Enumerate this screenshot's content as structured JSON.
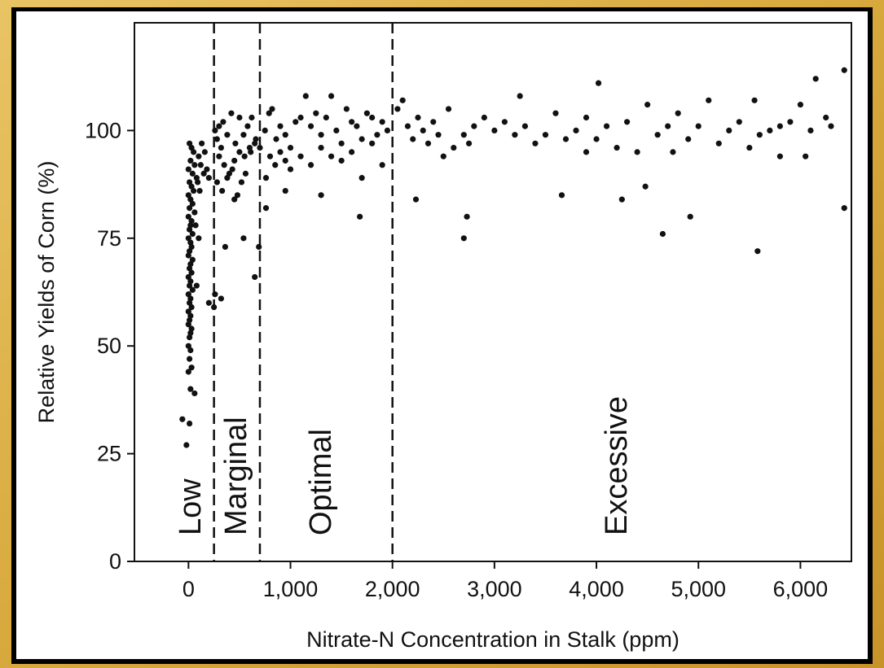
{
  "chart_data": {
    "type": "scatter",
    "x_label": "Nitrate-N Concentration in Stalk (ppm)",
    "y_label": "Relative Yields of Corn (%)",
    "xlim": [
      -530,
      6500
    ],
    "ylim": [
      0,
      125
    ],
    "xticks": [
      0,
      {
        "value": 1000,
        "label": "1,000"
      },
      {
        "value": 2000,
        "label": "2,000"
      },
      {
        "value": 3000,
        "label": "3,000"
      },
      {
        "value": 4000,
        "label": "4,000"
      },
      {
        "value": 5000,
        "label": "5,000"
      },
      {
        "value": 6000,
        "label": "6,000"
      }
    ],
    "yticks": [
      0,
      25,
      50,
      75,
      100
    ],
    "thresholds": [
      250,
      700,
      2000
    ],
    "annotations": [
      "Low",
      "Marginal",
      "Optimal",
      "Excessive"
    ],
    "color": "#111111",
    "series": [
      {
        "x": [
          10,
          30,
          50,
          20,
          60,
          0,
          40,
          80,
          10,
          30,
          50,
          0,
          20,
          40,
          10,
          60,
          0,
          30,
          20,
          10,
          40,
          0,
          20,
          30,
          10,
          0,
          40,
          20,
          10,
          30,
          0,
          20,
          10,
          40,
          0,
          20,
          10,
          30,
          0,
          20,
          10,
          0,
          30,
          20,
          10,
          0,
          20,
          10,
          30,
          0,
          20,
          60,
          -60,
          10,
          -20,
          100,
          120,
          150,
          90,
          110,
          130,
          160,
          180,
          200,
          70,
          100,
          80,
          200,
          260,
          300,
          340,
          280,
          320,
          380,
          420,
          460,
          500,
          540,
          580,
          620,
          660,
          300,
          350,
          400,
          450,
          500,
          550,
          600,
          650,
          700,
          280,
          330,
          380,
          430,
          480,
          520,
          560,
          610,
          450,
          360,
          540,
          690,
          650,
          260,
          250,
          320,
          750,
          790,
          820,
          860,
          900,
          950,
          1000,
          1050,
          1100,
          1150,
          1200,
          1250,
          1300,
          1350,
          1400,
          1450,
          1500,
          1550,
          1600,
          1650,
          1700,
          1750,
          1800,
          1850,
          1900,
          1950,
          760,
          800,
          850,
          900,
          950,
          1000,
          1100,
          1200,
          1300,
          1400,
          1500,
          1600,
          1700,
          1800,
          1900,
          760,
          950,
          1300,
          1680,
          2050,
          2100,
          2150,
          2200,
          2250,
          2300,
          2350,
          2400,
          2450,
          2500,
          2550,
          2600,
          2700,
          2750,
          2800,
          2900,
          3000,
          3100,
          3200,
          3250,
          3300,
          3400,
          3500,
          3600,
          3700,
          3800,
          3900,
          4000,
          4100,
          4200,
          4300,
          4400,
          4500,
          4600,
          4700,
          4800,
          4900,
          5000,
          5100,
          5200,
          5300,
          5400,
          5500,
          5550,
          5600,
          5700,
          5800,
          5900,
          6000,
          6050,
          6100,
          6150,
          6250,
          6300,
          6430,
          2230,
          2700,
          2730,
          3660,
          4020,
          4250,
          4480,
          4650,
          4920,
          5580,
          6430,
          5800,
          4750,
          3900
        ],
        "values": [
          97,
          96,
          95,
          93,
          92,
          91,
          90,
          89,
          88,
          87,
          86,
          85,
          84,
          83,
          82,
          81,
          80,
          79,
          78,
          77,
          76,
          75,
          74,
          73,
          72,
          71,
          70,
          69,
          68,
          67,
          66,
          65,
          64,
          63,
          62,
          61,
          60,
          59,
          58,
          57,
          56,
          55,
          54,
          53,
          52,
          50,
          49,
          47,
          45,
          44,
          40,
          39,
          33,
          32,
          27,
          94,
          92,
          90,
          88,
          86,
          97,
          95,
          91,
          89,
          78,
          75,
          64,
          60,
          100,
          101,
          102,
          98,
          96,
          99,
          104,
          97,
          103,
          99,
          101,
          103,
          98,
          94,
          92,
          90,
          93,
          95,
          94,
          96,
          97,
          96,
          88,
          86,
          89,
          91,
          85,
          88,
          90,
          95,
          84,
          73,
          75,
          73,
          66,
          62,
          59,
          61,
          100,
          104,
          105,
          98,
          101,
          99,
          96,
          102,
          103,
          108,
          101,
          104,
          99,
          103,
          108,
          100,
          97,
          105,
          102,
          101,
          98,
          104,
          103,
          99,
          102,
          100,
          89,
          94,
          92,
          95,
          93,
          91,
          94,
          92,
          96,
          94,
          93,
          95,
          89,
          97,
          92,
          82,
          86,
          85,
          80,
          105,
          107,
          101,
          98,
          103,
          100,
          97,
          102,
          99,
          94,
          105,
          96,
          99,
          97,
          101,
          103,
          100,
          102,
          99,
          108,
          101,
          97,
          99,
          104,
          98,
          100,
          103,
          98,
          101,
          96,
          102,
          95,
          106,
          99,
          101,
          104,
          98,
          101,
          107,
          97,
          100,
          102,
          96,
          107,
          99,
          100,
          101,
          102,
          106,
          94,
          100,
          112,
          103,
          101,
          114,
          84,
          75,
          80,
          85,
          111,
          84,
          87,
          76,
          80,
          72,
          82,
          94,
          95,
          95
        ]
      }
    ]
  }
}
